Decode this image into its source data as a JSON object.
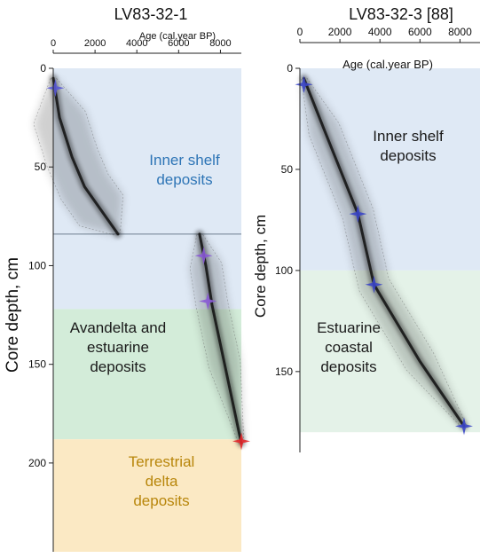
{
  "chart_data": [
    {
      "type": "line",
      "panel_title": "LV83-32-1",
      "xlabel": "Age (cal.year BP)",
      "ylabel": "Core depth, cm",
      "x_axis_position": "top",
      "y_axis_inverted": true,
      "xlim": [
        0,
        9000
      ],
      "ylim": [
        0,
        245
      ],
      "x_ticks": [
        0,
        2000,
        4000,
        6000,
        8000
      ],
      "x_tick_labels": [
        "0",
        "2000",
        "4000",
        "6000",
        "8000"
      ],
      "y_ticks": [
        0,
        50,
        100,
        150,
        200
      ],
      "y_tick_labels": [
        "0",
        "50",
        "100",
        "150",
        "200"
      ],
      "zones": [
        {
          "label_lines": [
            "Inner shelf",
            "deposits"
          ],
          "depth_from": 0,
          "depth_to": 122,
          "color": "#dfe9f5",
          "text_color": "#2e75b6"
        },
        {
          "label_lines": [
            "Avandelta and",
            "estuarine",
            "deposits"
          ],
          "depth_from": 122,
          "depth_to": 188,
          "color": "#d3ecd9",
          "text_color": "#1a1a1a"
        },
        {
          "label_lines": [
            "Terrestrial",
            "delta",
            "deposits"
          ],
          "depth_from": 188,
          "depth_to": 245,
          "color": "#fbe9c4",
          "text_color": "#b8860b"
        }
      ],
      "hiatus_depth": 84,
      "series": [
        {
          "x": [
            0,
            300,
            900,
            1500,
            2300,
            3100
          ],
          "y": [
            5,
            25,
            45,
            60,
            72,
            84
          ]
        },
        {
          "x": [
            7000,
            7300,
            7600,
            8200,
            9000
          ],
          "y": [
            84,
            100,
            120,
            150,
            190
          ]
        }
      ],
      "dates": [
        {
          "x": 100,
          "y": 10,
          "color": "#5a5ad6"
        },
        {
          "x": 7200,
          "y": 95,
          "color": "#8a5ad6"
        },
        {
          "x": 7400,
          "y": 118,
          "color": "#8a5ad6"
        },
        {
          "x": 9000,
          "y": 189,
          "color": "#e3262a"
        }
      ]
    },
    {
      "type": "line",
      "panel_title": "LV83-32-3 [88]",
      "xlabel": "Age (cal.year BP)",
      "ylabel": "Core depth, cm",
      "x_axis_position": "top",
      "y_axis_inverted": true,
      "xlim": [
        0,
        9000
      ],
      "ylim": [
        0,
        190
      ],
      "x_ticks": [
        0,
        2000,
        4000,
        6000,
        8000
      ],
      "x_tick_labels": [
        "0",
        "2000",
        "4000",
        "6000",
        "8000"
      ],
      "y_ticks": [
        0,
        50,
        100,
        150
      ],
      "y_tick_labels": [
        "0",
        "50",
        "100",
        "150"
      ],
      "zones": [
        {
          "label_lines": [
            "Inner shelf",
            "deposits"
          ],
          "depth_from": 0,
          "depth_to": 100,
          "color": "#dfe9f5",
          "text_color": "#1a1a1a"
        },
        {
          "label_lines": [
            "Estuarine",
            "coastal",
            "deposits"
          ],
          "depth_from": 100,
          "depth_to": 180,
          "color": "#e4f2e8",
          "text_color": "#1a1a1a"
        }
      ],
      "series": [
        {
          "x": [
            200,
            1200,
            2900,
            3700,
            6000,
            8200
          ],
          "y": [
            5,
            30,
            72,
            107,
            145,
            177
          ]
        }
      ],
      "dates": [
        {
          "x": 200,
          "y": 8,
          "color": "#3a45c8"
        },
        {
          "x": 2900,
          "y": 72,
          "color": "#3a45c8"
        },
        {
          "x": 3700,
          "y": 107,
          "color": "#3a45c8"
        },
        {
          "x": 8200,
          "y": 177,
          "color": "#3a45c8"
        }
      ]
    }
  ]
}
